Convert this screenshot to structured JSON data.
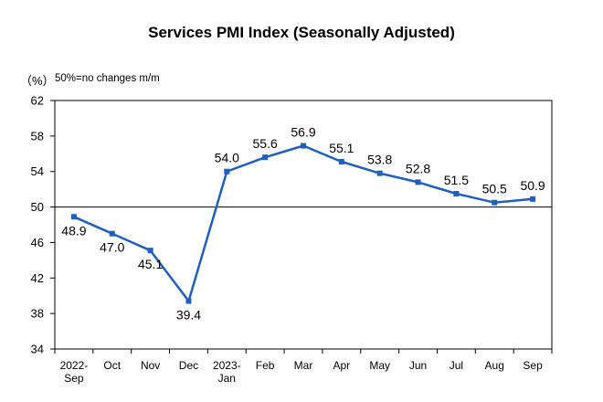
{
  "chart_data": {
    "type": "line",
    "title": "Services PMI Index (Seasonally Adjusted)",
    "unit_label": "（%）",
    "note": "50%=no changes m/m",
    "ylim": [
      34,
      62
    ],
    "yticks": [
      34,
      38,
      42,
      46,
      50,
      54,
      58,
      62
    ],
    "reference_line": 50,
    "grid": false,
    "categories": [
      [
        "2022-",
        "Sep"
      ],
      [
        "Oct"
      ],
      [
        "Nov"
      ],
      [
        "Dec"
      ],
      [
        "2023-",
        "Jan"
      ],
      [
        "Feb"
      ],
      [
        "Mar"
      ],
      [
        "Apr"
      ],
      [
        "May"
      ],
      [
        "Jun"
      ],
      [
        "Jul"
      ],
      [
        "Aug"
      ],
      [
        "Sep"
      ]
    ],
    "series": [
      {
        "values": [
          48.9,
          47.0,
          45.1,
          39.4,
          54.0,
          55.6,
          56.9,
          55.1,
          53.8,
          52.8,
          51.5,
          50.5,
          50.9
        ],
        "labels": [
          "48.9",
          "47.0",
          "45.1",
          "39.4",
          "54.0",
          "55.6",
          "56.9",
          "55.1",
          "53.8",
          "52.8",
          "51.5",
          "50.5",
          "50.9"
        ],
        "label_position": [
          "below",
          "below",
          "below",
          "below",
          "above",
          "above",
          "above",
          "above",
          "above",
          "above",
          "above",
          "above",
          "above"
        ],
        "color": "#1f5fbf"
      }
    ]
  }
}
